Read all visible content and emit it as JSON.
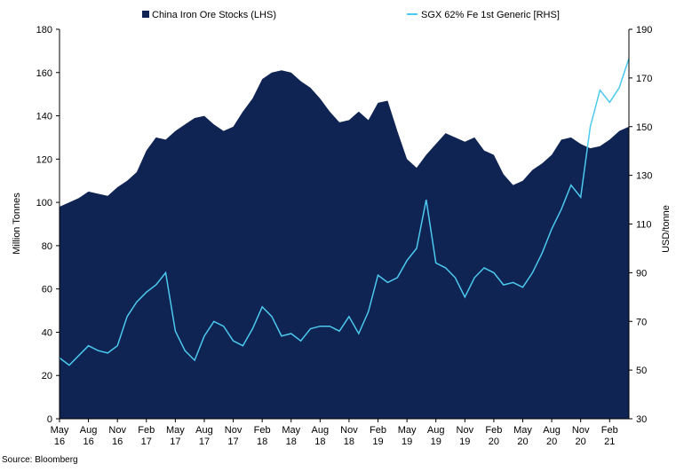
{
  "chart_data": {
    "type": "area",
    "secondary_type": "line",
    "title": "",
    "ylabel_left": "Million Tonnes",
    "ylabel_right": "USD/tonne",
    "ylim_left": [
      0,
      180
    ],
    "ylim_right": [
      30,
      190
    ],
    "yticks_left": [
      "0",
      "20",
      "40",
      "60",
      "80",
      "100",
      "120",
      "140",
      "160",
      "180"
    ],
    "yticks_right": [
      "30",
      "50",
      "70",
      "90",
      "110",
      "130",
      "150",
      "170",
      "190"
    ],
    "x_range": [
      "2016-05",
      "2021-04"
    ],
    "x_tick_labels": [
      {
        "m": "May",
        "y": "16"
      },
      {
        "m": "Aug",
        "y": "16"
      },
      {
        "m": "Nov",
        "y": "16"
      },
      {
        "m": "Feb",
        "y": "17"
      },
      {
        "m": "May",
        "y": "17"
      },
      {
        "m": "Aug",
        "y": "17"
      },
      {
        "m": "Nov",
        "y": "17"
      },
      {
        "m": "Feb",
        "y": "18"
      },
      {
        "m": "May",
        "y": "18"
      },
      {
        "m": "Aug",
        "y": "18"
      },
      {
        "m": "Nov",
        "y": "18"
      },
      {
        "m": "Feb",
        "y": "19"
      },
      {
        "m": "May",
        "y": "19"
      },
      {
        "m": "Aug",
        "y": "19"
      },
      {
        "m": "Nov",
        "y": "19"
      },
      {
        "m": "Feb",
        "y": "20"
      },
      {
        "m": "May",
        "y": "20"
      },
      {
        "m": "Aug",
        "y": "20"
      },
      {
        "m": "Nov",
        "y": "20"
      },
      {
        "m": "Feb",
        "y": "21"
      }
    ],
    "legend": "top",
    "grid": false,
    "series": [
      {
        "name": "China Iron Ore Stocks (LHS)",
        "axis": "left",
        "color": "#0f2453",
        "x": [
          "2016-05",
          "2016-06",
          "2016-07",
          "2016-08",
          "2016-09",
          "2016-10",
          "2016-11",
          "2016-12",
          "2017-01",
          "2017-02",
          "2017-03",
          "2017-04",
          "2017-05",
          "2017-06",
          "2017-07",
          "2017-08",
          "2017-09",
          "2017-10",
          "2017-11",
          "2017-12",
          "2018-01",
          "2018-02",
          "2018-03",
          "2018-04",
          "2018-05",
          "2018-06",
          "2018-07",
          "2018-08",
          "2018-09",
          "2018-10",
          "2018-11",
          "2018-12",
          "2019-01",
          "2019-02",
          "2019-03",
          "2019-04",
          "2019-05",
          "2019-06",
          "2019-07",
          "2019-08",
          "2019-09",
          "2019-10",
          "2019-11",
          "2019-12",
          "2020-01",
          "2020-02",
          "2020-03",
          "2020-04",
          "2020-05",
          "2020-06",
          "2020-07",
          "2020-08",
          "2020-09",
          "2020-10",
          "2020-11",
          "2020-12",
          "2021-01",
          "2021-02",
          "2021-03",
          "2021-04"
        ],
        "values": [
          98,
          100,
          102,
          105,
          104,
          103,
          107,
          110,
          114,
          124,
          130,
          129,
          133,
          136,
          139,
          140,
          136,
          133,
          135,
          142,
          148,
          157,
          160,
          161,
          160,
          156,
          153,
          148,
          142,
          137,
          138,
          142,
          138,
          146,
          147,
          133,
          120,
          116,
          122,
          127,
          132,
          130,
          128,
          130,
          124,
          122,
          113,
          108,
          110,
          115,
          118,
          122,
          129,
          130,
          127,
          125,
          126,
          129,
          133,
          135
        ]
      },
      {
        "name": "SGX 62% Fe 1st Generic [RHS]",
        "axis": "right",
        "color": "#4cc9ee",
        "x": [
          "2016-05",
          "2016-06",
          "2016-07",
          "2016-08",
          "2016-09",
          "2016-10",
          "2016-11",
          "2016-12",
          "2017-01",
          "2017-02",
          "2017-03",
          "2017-04",
          "2017-05",
          "2017-06",
          "2017-07",
          "2017-08",
          "2017-09",
          "2017-10",
          "2017-11",
          "2017-12",
          "2018-01",
          "2018-02",
          "2018-03",
          "2018-04",
          "2018-05",
          "2018-06",
          "2018-07",
          "2018-08",
          "2018-09",
          "2018-10",
          "2018-11",
          "2018-12",
          "2019-01",
          "2019-02",
          "2019-03",
          "2019-04",
          "2019-05",
          "2019-06",
          "2019-07",
          "2019-08",
          "2019-09",
          "2019-10",
          "2019-11",
          "2019-12",
          "2020-01",
          "2020-02",
          "2020-03",
          "2020-04",
          "2020-05",
          "2020-06",
          "2020-07",
          "2020-08",
          "2020-09",
          "2020-10",
          "2020-11",
          "2020-12",
          "2021-01",
          "2021-02",
          "2021-03",
          "2021-04"
        ],
        "values": [
          55,
          52,
          56,
          60,
          58,
          57,
          60,
          72,
          78,
          82,
          85,
          90,
          66,
          58,
          54,
          64,
          70,
          68,
          62,
          60,
          67,
          76,
          72,
          64,
          65,
          62,
          67,
          68,
          68,
          66,
          72,
          65,
          74,
          89,
          86,
          88,
          95,
          100,
          120,
          94,
          92,
          88,
          80,
          88,
          92,
          90,
          85,
          86,
          84,
          90,
          98,
          108,
          116,
          126,
          121,
          150,
          165,
          160,
          166,
          178
        ]
      }
    ]
  },
  "source": "Source: Bloomberg"
}
